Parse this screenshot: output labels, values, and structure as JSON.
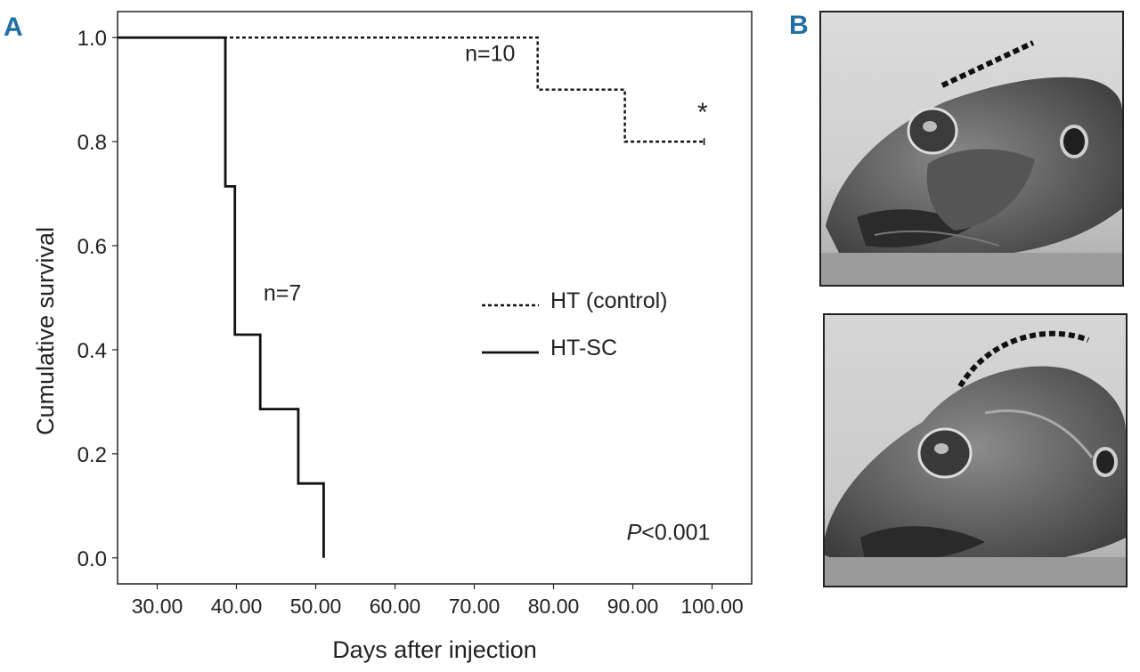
{
  "panels": {
    "a_label": "A",
    "b_label": "B"
  },
  "chart_data": {
    "type": "line",
    "step": true,
    "title": "",
    "xlabel": "Days after injection",
    "ylabel": "Cumulative survival",
    "xlim": [
      25,
      105
    ],
    "ylim": [
      -0.05,
      1.05
    ],
    "x_ticks": [
      30,
      40,
      50,
      60,
      70,
      80,
      90,
      100
    ],
    "x_tick_labels": [
      "30.00",
      "40.00",
      "50.00",
      "60.00",
      "70.00",
      "80.00",
      "90.00",
      "100.00"
    ],
    "y_ticks": [
      0.0,
      0.2,
      0.4,
      0.6,
      0.8,
      1.0
    ],
    "y_tick_labels": [
      "0.0",
      "0.2",
      "0.4",
      "0.6",
      "0.8",
      "1.0"
    ],
    "grid": false,
    "legend_position": "center-right",
    "series": [
      {
        "name": "HT (control)",
        "line_style": "dotted",
        "color": "#111111",
        "x": [
          25,
          78,
          89,
          99
        ],
        "y": [
          1.0,
          0.9,
          0.8,
          0.8
        ]
      },
      {
        "name": "HT-SC",
        "line_style": "solid",
        "color": "#111111",
        "x": [
          25,
          38.6,
          39.8,
          43,
          47.8,
          51
        ],
        "y": [
          1.0,
          0.714,
          0.429,
          0.286,
          0.143,
          0.0
        ]
      }
    ],
    "annotations": [
      {
        "text": "n=10",
        "x": 72,
        "y": 0.955
      },
      {
        "text": "n=7",
        "x": 45.8,
        "y": 0.495
      },
      {
        "text": "*",
        "x": 98.8,
        "y": 0.84
      },
      {
        "text_italic": "P",
        "text": "<0.001",
        "x": 94.5,
        "y": 0.035
      }
    ]
  },
  "photos": [
    {
      "outline_shape": "flat dorsal profile",
      "outline_style": "dashed"
    },
    {
      "outline_shape": "domed dorsal profile",
      "outline_style": "dashed"
    }
  ]
}
